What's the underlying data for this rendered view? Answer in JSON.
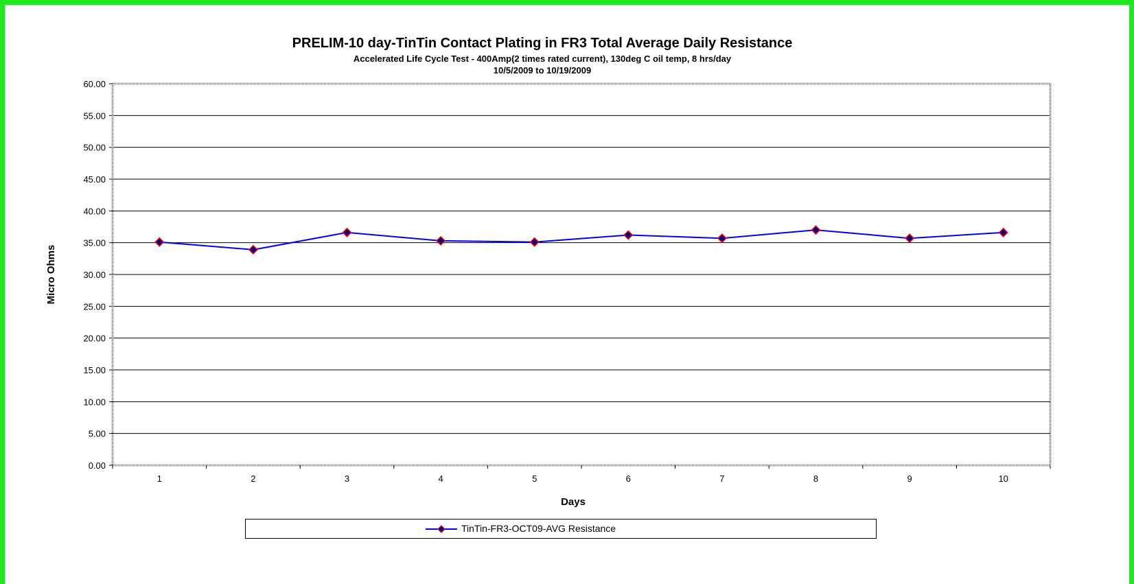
{
  "chart_data": {
    "type": "line",
    "title": "PRELIM-10 day-TinTin Contact Plating in FR3 Total Average Daily Resistance",
    "subtitle": "Accelerated Life Cycle Test - 400Amp(2 times rated current), 130deg C oil temp, 8 hrs/day",
    "date_range": "10/5/2009 to 10/19/2009",
    "xlabel": "Days",
    "ylabel": "Micro Ohms",
    "categories": [
      "1",
      "2",
      "3",
      "4",
      "5",
      "6",
      "7",
      "8",
      "9",
      "10"
    ],
    "yticks": [
      "0.00",
      "5.00",
      "10.00",
      "15.00",
      "20.00",
      "25.00",
      "30.00",
      "35.00",
      "40.00",
      "45.00",
      "50.00",
      "55.00",
      "60.00"
    ],
    "ylim": [
      0,
      60
    ],
    "grid": true,
    "legend_position": "bottom",
    "series": [
      {
        "name": "TinTin-FR3-OCT09-AVG Resistance",
        "values": [
          35.1,
          33.9,
          36.6,
          35.3,
          35.1,
          36.2,
          35.7,
          37.0,
          35.7,
          36.6
        ],
        "line_color": "#0000ff",
        "marker_fill": "#000080",
        "marker_edge": "#ff0000"
      }
    ]
  }
}
